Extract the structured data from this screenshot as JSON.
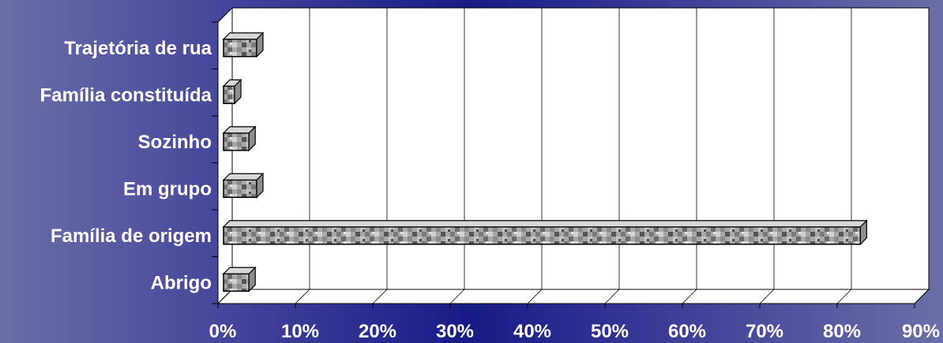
{
  "chart_data": {
    "type": "bar",
    "orientation": "horizontal",
    "categories": [
      "Trajetória de rua",
      "Família constituída",
      "Sozinho",
      "Em grupo",
      "Família de origem",
      "Abrigo"
    ],
    "values": [
      5,
      2,
      4,
      5,
      83,
      4
    ],
    "xlim": [
      0,
      90
    ],
    "x_ticks": [
      "0%",
      "10%",
      "20%",
      "30%",
      "40%",
      "50%",
      "60%",
      "70%",
      "80%",
      "90%"
    ],
    "grid": true,
    "legend": "none",
    "style": "3d",
    "colors": {
      "plot_face": "#ffffff",
      "grid": "#000000",
      "bar_base": "#a8a8a8",
      "text": "#ffffff"
    }
  }
}
